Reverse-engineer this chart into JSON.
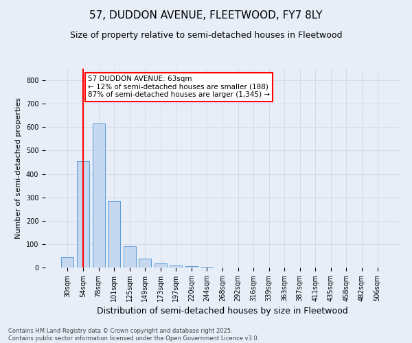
{
  "title1": "57, DUDDON AVENUE, FLEETWOOD, FY7 8LY",
  "title2": "Size of property relative to semi-detached houses in Fleetwood",
  "xlabel": "Distribution of semi-detached houses by size in Fleetwood",
  "ylabel": "Number of semi-detached properties",
  "categories": [
    "30sqm",
    "54sqm",
    "78sqm",
    "101sqm",
    "125sqm",
    "149sqm",
    "173sqm",
    "197sqm",
    "220sqm",
    "244sqm",
    "268sqm",
    "292sqm",
    "316sqm",
    "339sqm",
    "363sqm",
    "387sqm",
    "411sqm",
    "435sqm",
    "458sqm",
    "482sqm",
    "506sqm"
  ],
  "values": [
    45,
    455,
    615,
    285,
    90,
    38,
    18,
    8,
    5,
    4,
    0,
    0,
    0,
    0,
    0,
    0,
    0,
    0,
    0,
    0,
    0
  ],
  "bar_color": "#c5d8f0",
  "bar_edge_color": "#5b9bd5",
  "vline_x": 1,
  "vline_color": "red",
  "annotation_text": "57 DUDDON AVENUE: 63sqm\n← 12% of semi-detached houses are smaller (188)\n87% of semi-detached houses are larger (1,345) →",
  "annotation_box_color": "white",
  "annotation_box_edge_color": "red",
  "ylim": [
    0,
    850
  ],
  "yticks": [
    0,
    100,
    200,
    300,
    400,
    500,
    600,
    700,
    800
  ],
  "grid_color": "#d0d8e8",
  "background_color": "#e8eef8",
  "footnote": "Contains HM Land Registry data © Crown copyright and database right 2025.\nContains public sector information licensed under the Open Government Licence v3.0.",
  "title1_fontsize": 11,
  "title2_fontsize": 9,
  "xlabel_fontsize": 9,
  "ylabel_fontsize": 8,
  "tick_fontsize": 7,
  "annotation_fontsize": 7.5,
  "footnote_fontsize": 6
}
